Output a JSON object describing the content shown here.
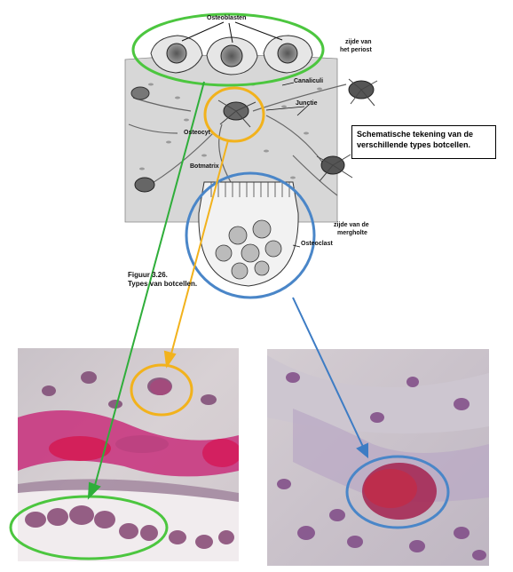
{
  "labels": {
    "osteoblasten": "Osteoblasten",
    "zijde_periost_1": "zijde van",
    "zijde_periost_2": "het periost",
    "canaliculi": "Canaliculi",
    "junctie": "Junctie",
    "osteocyt": "Osteocyt",
    "botmatrix": "Botmatrix",
    "zijde_mergholte_1": "zijde van de",
    "zijde_mergholte_2": "mergholte",
    "osteoclast": "Osteoclast"
  },
  "caption_box": {
    "line1": "Schematische tekening van de",
    "line2": "verschillende types botcellen."
  },
  "figure_caption": {
    "line1": "Figuur 3.26.",
    "line2": "Types van botcellen."
  },
  "colors": {
    "osteoblast_ring": "#4cc63f",
    "osteocyte_ring": "#f2b21c",
    "osteoclast_ring": "#4a86c8",
    "arrow_green": "#2fae3a",
    "arrow_yellow": "#f2b21c",
    "arrow_blue": "#3d7cc4",
    "tissue_pink": "#c6377a",
    "stain_purple": "#7a4a86"
  }
}
